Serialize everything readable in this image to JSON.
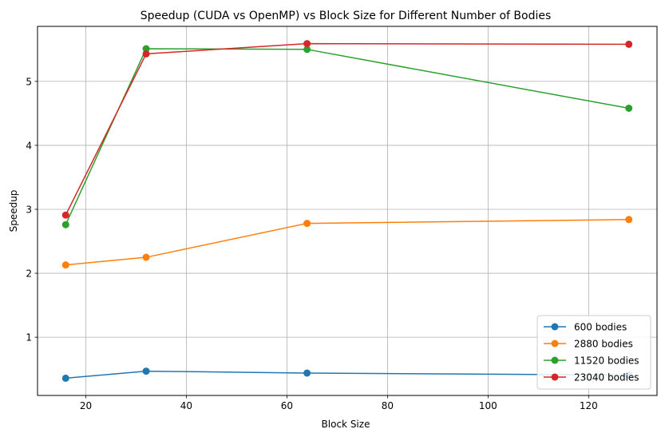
{
  "chart_data": {
    "type": "line",
    "title": "Speedup (CUDA vs OpenMP) vs Block Size for Different Number of Bodies",
    "xlabel": "Block Size",
    "ylabel": "Speedup",
    "x": [
      16,
      32,
      64,
      128
    ],
    "xlim": [
      10.4,
      133.6
    ],
    "ylim": [
      0.09,
      5.86
    ],
    "xticks": [
      20,
      40,
      60,
      80,
      100,
      120
    ],
    "yticks": [
      1,
      2,
      3,
      4,
      5
    ],
    "grid": true,
    "legend_position": "lower-right",
    "series": [
      {
        "name": "600 bodies",
        "color": "#1f77b4",
        "values": [
          0.36,
          0.47,
          0.44,
          0.41
        ]
      },
      {
        "name": "2880 bodies",
        "color": "#ff7f0e",
        "values": [
          2.13,
          2.25,
          2.78,
          2.84
        ]
      },
      {
        "name": "11520 bodies",
        "color": "#2ca02c",
        "values": [
          2.76,
          5.51,
          5.5,
          4.58
        ]
      },
      {
        "name": "23040 bodies",
        "color": "#d62728",
        "values": [
          2.91,
          5.43,
          5.59,
          5.58
        ]
      }
    ]
  }
}
